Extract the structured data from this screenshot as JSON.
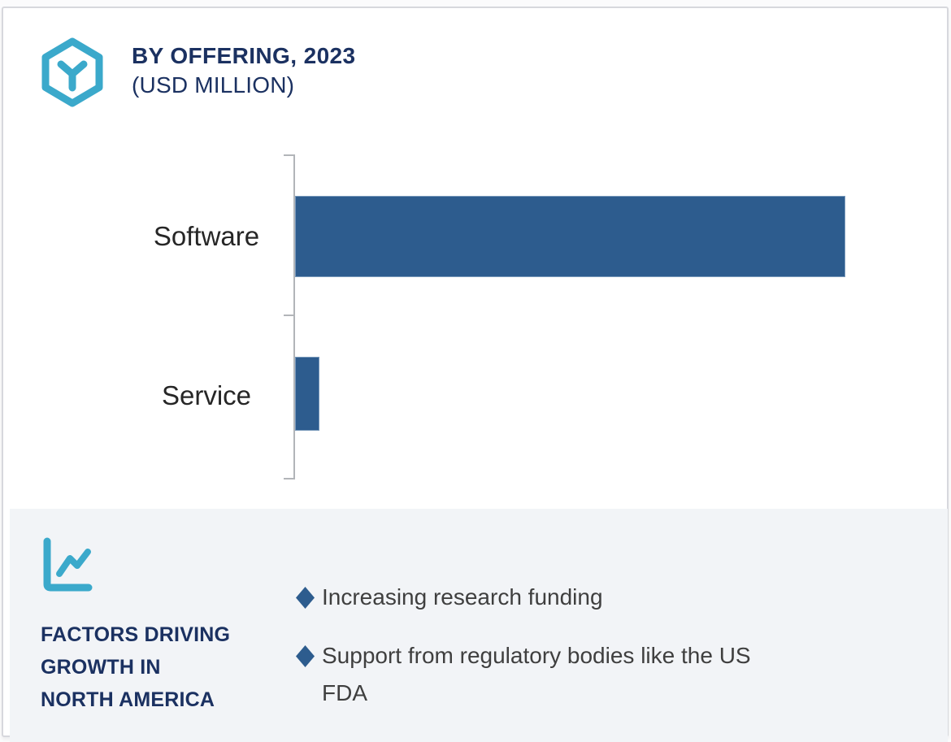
{
  "header": {
    "title_line1": "BY OFFERING, 2023",
    "title_line2": "(USD MILLION)",
    "icon": "hexagon-cube-icon"
  },
  "chart_data": {
    "type": "bar",
    "orientation": "horizontal",
    "title": "BY OFFERING, 2023 (USD MILLION)",
    "categories": [
      "Software",
      "Service"
    ],
    "values_relative_pct_of_max": [
      100,
      4.4
    ],
    "value_labels_shown": false,
    "axis_tick_labels_shown": false,
    "legend": "none",
    "grid": "off",
    "bar_color": "#2d5c8e",
    "axis_color": "#b2b5b9"
  },
  "factors_panel": {
    "icon": "line-chart-icon",
    "heading_lines": [
      "FACTORS DRIVING",
      "GROWTH IN",
      "NORTH AMERICA"
    ],
    "bullets": [
      "Increasing research funding",
      "Support from regulatory bodies like the US FDA"
    ],
    "bullet_marker": "diamond",
    "bullet_color": "#2d5c8e"
  },
  "colors": {
    "accent_teal": "#3ba9cb",
    "navy": "#1b3161",
    "bar_blue": "#2d5c8e",
    "panel_bg": "#f2f4f7",
    "body_text": "#3f3f3f",
    "card_border": "#d7d8dd"
  }
}
